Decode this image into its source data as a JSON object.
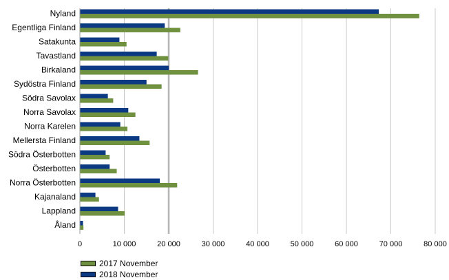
{
  "chart_data": {
    "type": "bar",
    "orientation": "horizontal",
    "title": "",
    "xlabel": "",
    "ylabel": "",
    "categories": [
      "Nyland",
      "Egentliga Finland",
      "Satakunta",
      "Tavastland",
      "Birkaland",
      "Sydöstra Finland",
      "Södra Savolax",
      "Norra Savolax",
      "Norra Karelen",
      "Mellersta Finland",
      "Södra Österbotten",
      "Österbotten",
      "Norra Österbotten",
      "Kajanaland",
      "Lappland",
      "Åland"
    ],
    "series": [
      {
        "name": "2018 November",
        "color": "#0b3a82",
        "values": [
          67300,
          19100,
          8900,
          17300,
          20000,
          15000,
          6300,
          10900,
          9100,
          13400,
          5800,
          6700,
          18000,
          3500,
          8600,
          700
        ]
      },
      {
        "name": "2017 November",
        "color": "#6f9140",
        "values": [
          76400,
          22600,
          10500,
          19900,
          26600,
          18400,
          7500,
          12500,
          10700,
          15700,
          6700,
          8300,
          21900,
          4300,
          10100,
          800
        ]
      }
    ],
    "xlim": [
      0,
      80000
    ],
    "xticks": [
      0,
      10000,
      20000,
      30000,
      40000,
      50000,
      60000,
      70000,
      80000
    ],
    "xtick_labels": [
      "0",
      "10 000",
      "20 000",
      "30 000",
      "40 000",
      "50 000",
      "60 000",
      "70 000",
      "80 000"
    ],
    "grid": "vertical",
    "highlight_gridline": 20000,
    "legend_placement": "bottom-left",
    "legend": [
      "2017 November",
      "2018 November"
    ]
  }
}
